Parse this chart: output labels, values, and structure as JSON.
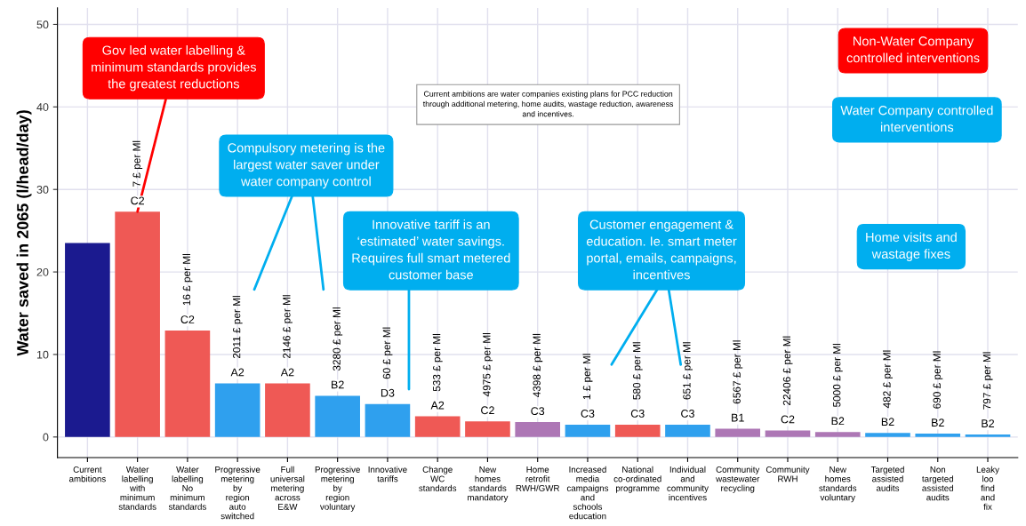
{
  "chart_data": {
    "type": "bar",
    "ylabel": "Water saved in 2065 (l/head/day)",
    "categories": [
      "Current\nambitions",
      "Water\nlabelling\nwith\nminimum\nstandards",
      "Water\nlabelling\nNo\nminimum\nstandards",
      "Progressive\nmetering\nby\nregion\nauto\nswitched",
      "Full\nuniversal\nmetering\nacross\nE&W",
      "Progressive\nmetering\nby\nregion\nvoluntary",
      "Innovative\ntariffs",
      "Change\nWC\nstandards",
      "New\nhomes\nstandards\nmandatory",
      "Home\nretrofit\nRWH/GWR",
      "Increased\nmedia\ncampaigns\nand\nschools\neducation",
      "National\nco-ordinated\nprogramme",
      "Individual\nand\ncommunity\nincentives",
      "Community\nwastewater\nrecycling",
      "Community\nRWH",
      "New\nhomes\nstandards\nvoluntary",
      "Targeted\nassisted\naudits",
      "Non\ntargeted\nassisted\naudits",
      "Leaky\nloo\nfind\nand\nfix"
    ],
    "values": [
      23.5,
      27.3,
      12.9,
      6.5,
      6.5,
      5.0,
      4.0,
      2.5,
      1.9,
      1.8,
      1.5,
      1.5,
      1.5,
      1.0,
      0.8,
      0.6,
      0.5,
      0.4,
      0.3
    ],
    "colors": [
      "#1b1a8f",
      "#ef5955",
      "#ef5955",
      "#2fa0ee",
      "#ef5955",
      "#2fa0ee",
      "#2fa0ee",
      "#ef5955",
      "#ef5955",
      "#ad77b5",
      "#2fa0ee",
      "#ef5955",
      "#2fa0ee",
      "#ad77b5",
      "#ad77b5",
      "#ad77b5",
      "#2fa0ee",
      "#2fa0ee",
      "#2fa0ee"
    ],
    "value_labels": [
      null,
      "C2",
      "C2",
      "A2",
      "A2",
      "B2",
      "D3",
      "A2",
      "C2",
      "C3",
      "C3",
      "C3",
      "C3",
      "B1",
      "C2",
      "B2",
      "B2",
      "B2",
      "B2"
    ],
    "ylim": [
      -2.5,
      52
    ],
    "yticks": [
      0,
      10,
      20,
      30,
      40,
      50
    ],
    "grid": true,
    "annotations": [
      {
        "text": "Gov led water labelling &\nminimum standards provides\nthe greatest reductions",
        "x": "Water\nlabelling\nwith\nminimum\nstandards",
        "y": 27.3
      },
      "Current ambitions are water companies existing plans for PCC reduction\nthrough additional metering, home audits, wastage reduction, awareness\nand incentives.",
      "Compulsory metering is the\nlargest water saver under\nwater company control",
      "Innovative tariff is an\n‘estimated’ water savings.\nRequires full smart metered\ncustomer base",
      "Customer engagement &\neducation. Ie. smart meter\nportal, emails, campaigns,\nincentives",
      "Non-Water Company\ncontrolled interventions",
      "Water Company controlled\ninterventions",
      "Home visits and\nwastage fixes",
      {
        "text": "7 £ per Ml",
        "x": "Water\nlabelling\nwith\nminimum\nstandards",
        "y": 27.3
      },
      {
        "text": "16 £ per Ml",
        "x": "Water\nlabelling\nNo\nminimum\nstandards",
        "y": 12.9
      },
      {
        "text": "2011 £ per Ml",
        "x": "Progressive\nmetering\nby\nregion\nauto\nswitched",
        "y": 6.5
      },
      {
        "text": "2146 £ per Ml",
        "x": "Full\nuniversal\nmetering\nacross\nE&W",
        "y": 6.5
      },
      {
        "text": "3280 £ per Ml",
        "x": "Progressive\nmetering\nby\nregion\nvoluntary",
        "y": 5.0
      },
      {
        "text": "60 £ per Ml",
        "x": "Innovative\ntariffs",
        "y": 4.0
      },
      {
        "text": "533 £ per Ml",
        "x": "Change\nWC\nstandards",
        "y": 2.5
      },
      {
        "text": "4975 £ per Ml",
        "x": "New\nhomes\nstandards\nmandatory",
        "y": 1.9
      },
      {
        "text": "4398 £ per Ml",
        "x": "Home\nretrofit\nRWH/GWR",
        "y": 1.8
      },
      {
        "text": "1 £ per Ml",
        "x": "Increased\nmedia\ncampaigns\nand\nschools\neducation",
        "y": 1.5
      },
      {
        "text": "580 £ per Ml",
        "x": "National\nco-ordinated\nprogramme",
        "y": 1.5
      },
      {
        "text": "651 £ per Ml",
        "x": "Individual\nand\ncommunity\nincentives",
        "y": 1.5
      },
      {
        "text": "6567 £ per Ml",
        "x": "Community\nwastewater\nrecycling",
        "y": 1.0
      },
      {
        "text": "22406 £ per Ml",
        "x": "Community\nRWH",
        "y": 0.8
      },
      {
        "text": "5000 £ per Ml",
        "x": "New\nhomes\nstandards\nvoluntary",
        "y": 0.6
      },
      {
        "text": "482 £ per Ml",
        "x": "Targeted\nassisted\naudits",
        "y": 0.5
      },
      {
        "text": "690 £ per Ml",
        "x": "Non\ntargeted\nassisted\naudits",
        "y": 0.4
      },
      {
        "text": "797 £ per Ml",
        "x": "Leaky\nloo\nfind\nand\nfix",
        "y": 0.3
      }
    ]
  }
}
